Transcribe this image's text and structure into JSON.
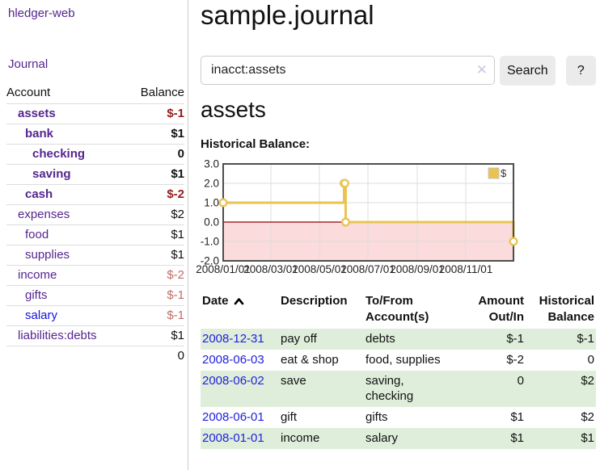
{
  "app": {
    "title": "hledger-web"
  },
  "sidebar": {
    "nav_journal": "Journal",
    "accounts_table": {
      "headers": [
        "Account",
        "Balance"
      ],
      "rows": [
        {
          "name": "assets",
          "indent": 1,
          "bold": true,
          "link_color": "purple",
          "balance": "$-1",
          "balance_class": "neg_strong"
        },
        {
          "name": "bank",
          "indent": 2,
          "bold": true,
          "link_color": "purple",
          "balance": "$1",
          "balance_class": ""
        },
        {
          "name": "checking",
          "indent": 3,
          "bold": true,
          "link_color": "purple",
          "balance": "0",
          "balance_class": ""
        },
        {
          "name": "saving",
          "indent": 3,
          "bold": true,
          "link_color": "purple",
          "balance": "$1",
          "balance_class": ""
        },
        {
          "name": "cash",
          "indent": 2,
          "bold": true,
          "link_color": "purple",
          "balance": "$-2",
          "balance_class": "neg_strong"
        },
        {
          "name": "expenses",
          "indent": 1,
          "bold": false,
          "link_color": "purple",
          "balance": "$2",
          "balance_class": ""
        },
        {
          "name": "food",
          "indent": 2,
          "bold": false,
          "link_color": "purple",
          "balance": "$1",
          "balance_class": ""
        },
        {
          "name": "supplies",
          "indent": 2,
          "bold": false,
          "link_color": "purple",
          "balance": "$1",
          "balance_class": ""
        },
        {
          "name": "income",
          "indent": 1,
          "bold": false,
          "link_color": "purple",
          "balance": "$-2",
          "balance_class": "neg_soft"
        },
        {
          "name": "gifts",
          "indent": 2,
          "bold": false,
          "link_color": "purple",
          "balance": "$-1",
          "balance_class": "neg_soft"
        },
        {
          "name": "salary",
          "indent": 2,
          "bold": false,
          "link_color": "blue",
          "balance": "$-1",
          "balance_class": "neg_soft"
        },
        {
          "name": "liabilities:debts",
          "indent": 1,
          "bold": false,
          "link_color": "purple",
          "balance": "$1",
          "balance_class": ""
        }
      ],
      "total": "0"
    }
  },
  "main": {
    "title": "sample.journal",
    "search": {
      "value": "inacct:assets",
      "clear_label": "✕",
      "button": "Search",
      "help_button": "?"
    },
    "section_title": "assets",
    "chart_label": "Historical Balance:"
  },
  "chart_data": {
    "type": "line",
    "title": "Historical Balance",
    "step": true,
    "points": [
      {
        "date": "2008-01-01",
        "value": 1
      },
      {
        "date": "2008-06-01",
        "value": 2
      },
      {
        "date": "2008-06-02",
        "value": 2
      },
      {
        "date": "2008-06-03",
        "value": 0
      },
      {
        "date": "2008-12-31",
        "value": -1
      }
    ],
    "ylim": [
      -2,
      3
    ],
    "yticks": [
      "3.0",
      "2.0",
      "1.0",
      "0.0",
      "-1.0",
      "-2.0"
    ],
    "xticks": [
      "2008/01/01",
      "2008/03/01",
      "2008/05/01",
      "2008/07/01",
      "2008/09/01",
      "2008/11/01"
    ],
    "x_range": [
      "2008-01-01",
      "2008-12-31"
    ],
    "legend": [
      {
        "label": "$",
        "color": "#eac250"
      }
    ],
    "line_color": "#e9c455",
    "below_zero_fill": "#fbdbdb",
    "zero_line_color": "#8e0000",
    "grid": true,
    "legend_position": "top-right"
  },
  "register_table": {
    "headers": [
      "Date",
      "Description",
      "To/From Account(s)",
      "Amount Out/In",
      "Historical Balance"
    ],
    "rows": [
      {
        "date": "2008-12-31",
        "description": "pay off",
        "accounts": "debts",
        "amount": "$-1",
        "amount_neg": true,
        "balance": "$-1",
        "balance_neg": true
      },
      {
        "date": "2008-06-03",
        "description": "eat & shop",
        "accounts": "food, supplies",
        "amount": "$-2",
        "amount_neg": true,
        "balance": "0",
        "balance_neg": false
      },
      {
        "date": "2008-06-02",
        "description": "save",
        "accounts": "saving, checking",
        "amount": "0",
        "amount_neg": false,
        "balance": "$2",
        "balance_neg": false
      },
      {
        "date": "2008-06-01",
        "description": "gift",
        "accounts": "gifts",
        "amount": "$1",
        "amount_neg": false,
        "balance": "$2",
        "balance_neg": false
      },
      {
        "date": "2008-01-01",
        "description": "income",
        "accounts": "salary",
        "amount": "$1",
        "amount_neg": false,
        "balance": "$1",
        "balance_neg": false
      }
    ]
  }
}
